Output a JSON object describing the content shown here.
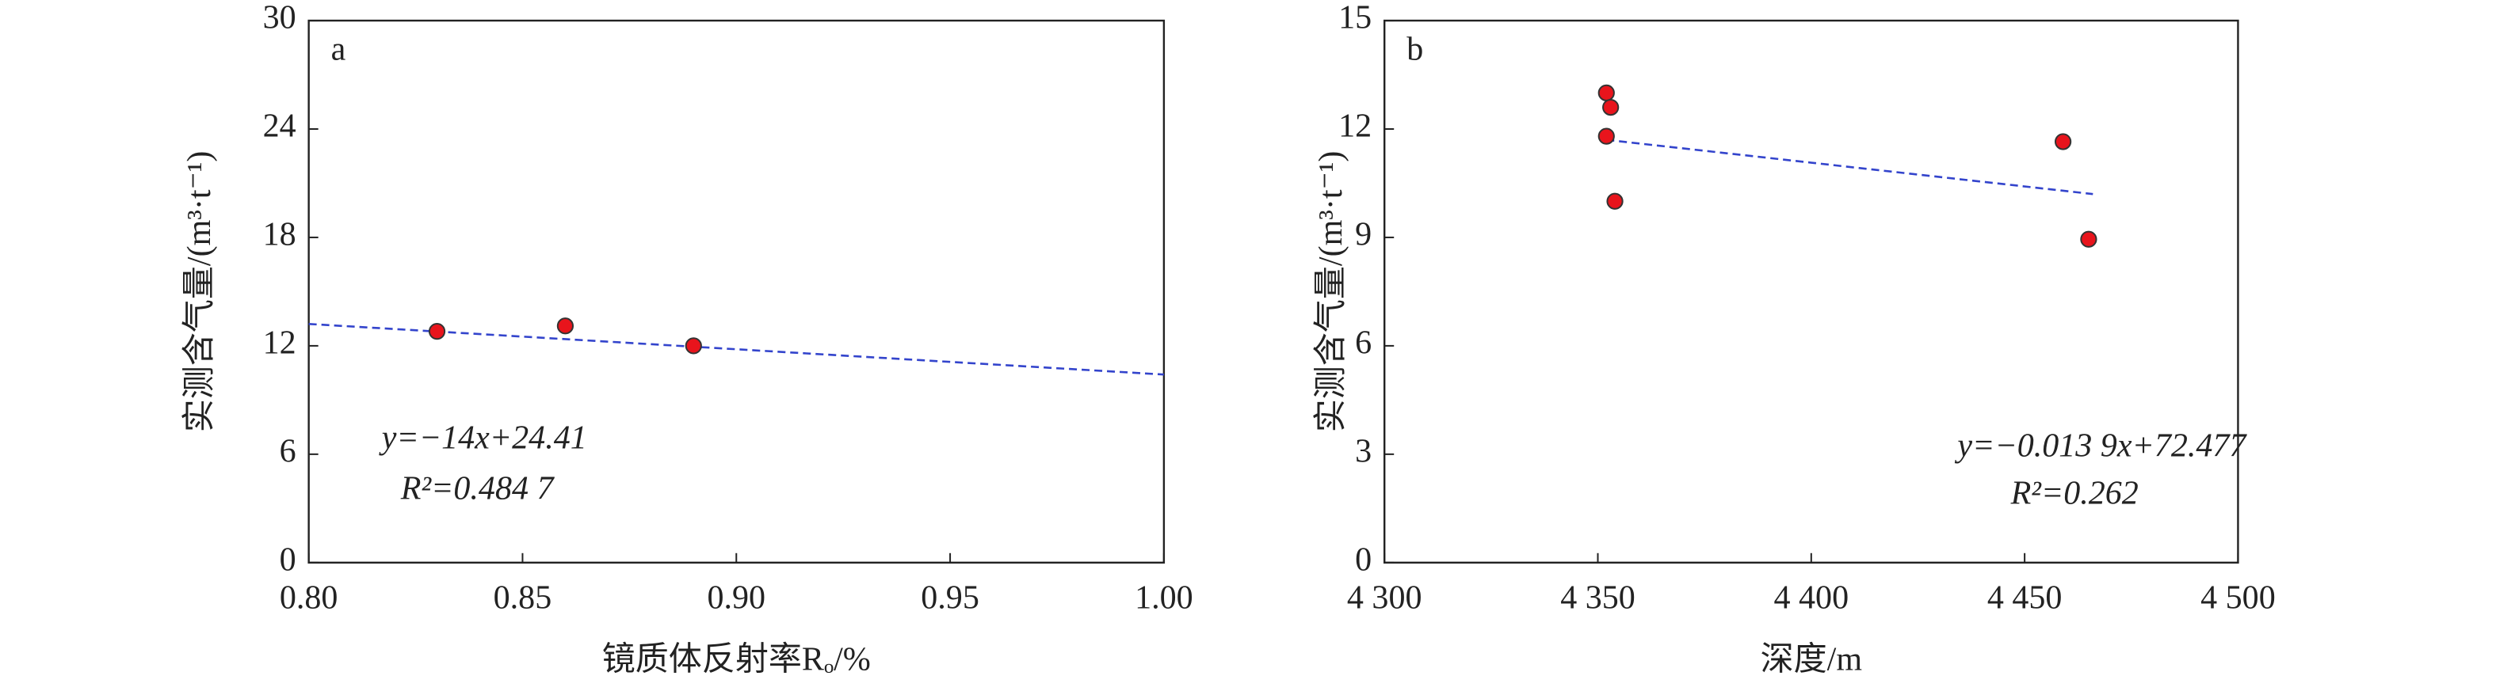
{
  "chart_data": [
    {
      "type": "scatter",
      "label": "a",
      "x_label": "镜质体反射率Rₒ/%",
      "y_label": "实测含气量/(m³·t⁻¹)",
      "xlim": [
        0.8,
        1.0
      ],
      "xticks": [
        {
          "value": 0.8,
          "label": "0.80"
        },
        {
          "value": 0.85,
          "label": "0.85"
        },
        {
          "value": 0.9,
          "label": "0.90"
        },
        {
          "value": 0.95,
          "label": "0.95"
        },
        {
          "value": 1.0,
          "label": "1.00"
        }
      ],
      "ylim": [
        0,
        30
      ],
      "yticks": [
        0,
        6,
        12,
        18,
        24,
        30
      ],
      "x": [
        0.83,
        0.86,
        0.89
      ],
      "values": [
        12.8,
        13.1,
        12.0
      ],
      "color": "#e8141c",
      "trendline": {
        "x": [
          0.8,
          1.0
        ],
        "y": [
          13.21,
          10.41
        ],
        "color": "#3344cc"
      },
      "annotations": [
        "y=−14x+24.41",
        "R²=0.484 7"
      ]
    },
    {
      "type": "scatter",
      "label": "b",
      "x_label": "深度/m",
      "y_label": "实测含气量/(m³·t⁻¹)",
      "xlim": [
        4300,
        4500
      ],
      "xticks": [
        {
          "value": 4300,
          "label": "4 300"
        },
        {
          "value": 4350,
          "label": "4 350"
        },
        {
          "value": 4400,
          "label": "4 400"
        },
        {
          "value": 4450,
          "label": "4 450"
        },
        {
          "value": 4500,
          "label": "4 500"
        }
      ],
      "ylim": [
        0,
        15
      ],
      "yticks": [
        0,
        3,
        6,
        9,
        12,
        15
      ],
      "x": [
        4352,
        4353,
        4352,
        4354,
        4459,
        4465
      ],
      "values": [
        13.0,
        12.6,
        11.8,
        10.0,
        11.65,
        8.95
      ],
      "color": "#e8141c",
      "trendline": {
        "x": [
          4352,
          4466
        ],
        "y": [
          11.7,
          10.2
        ],
        "color": "#3344cc"
      },
      "annotations": [
        "y=−0.013 9x+72.477",
        "R²=0.262"
      ]
    }
  ]
}
